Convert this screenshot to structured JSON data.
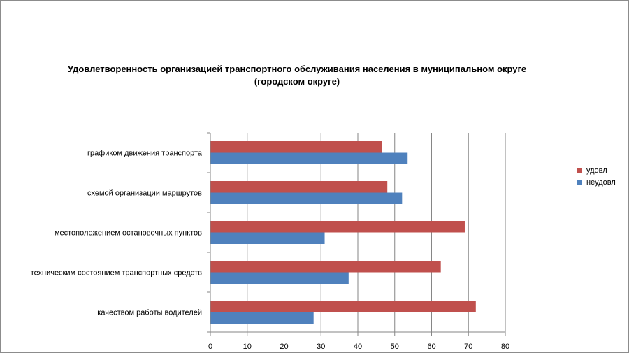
{
  "chart_data": {
    "type": "bar",
    "orientation": "horizontal",
    "title_lines": [
      "Удовлетворенность организацией транспортного обслуживания населения в муниципальном округе",
      "(городском округе)"
    ],
    "categories": [
      "графиком движения транспорта",
      "схемой организации маршрутов",
      "местоположением остановочных пунктов",
      "техническим состоянием транспортных средств",
      "качеством работы водителей"
    ],
    "series": [
      {
        "name": "удовл",
        "color": "#c0504d",
        "values": [
          46.5,
          48,
          69,
          62.5,
          72
        ]
      },
      {
        "name": "неудовл",
        "color": "#4f81bd",
        "values": [
          53.5,
          52,
          31,
          37.5,
          28
        ]
      }
    ],
    "xlim": [
      0,
      80
    ],
    "xticks": [
      0,
      10,
      20,
      30,
      40,
      50,
      60,
      70,
      80
    ],
    "grid": true,
    "legend_position": "right"
  }
}
